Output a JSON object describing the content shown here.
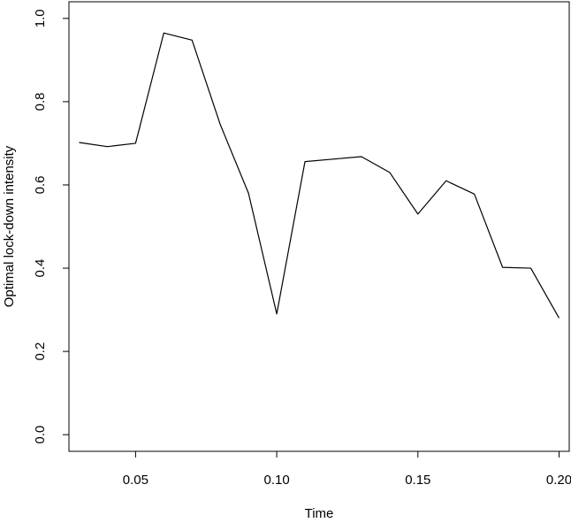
{
  "chart_data": {
    "type": "line",
    "title": "",
    "xlabel": "Time",
    "ylabel": "Optimal lock-down intensity",
    "xlim": [
      0.0264,
      0.2036
    ],
    "ylim": [
      -0.04,
      1.04
    ],
    "grid": false,
    "legend": "none",
    "x_ticks": [
      {
        "value": 0.05,
        "label": "0.05"
      },
      {
        "value": 0.1,
        "label": "0.10"
      },
      {
        "value": 0.15,
        "label": "0.15"
      },
      {
        "value": 0.2,
        "label": "0.20"
      }
    ],
    "y_ticks": [
      {
        "value": 0.0,
        "label": "0.0"
      },
      {
        "value": 0.2,
        "label": "0.2"
      },
      {
        "value": 0.4,
        "label": "0.4"
      },
      {
        "value": 0.6,
        "label": "0.6"
      },
      {
        "value": 0.8,
        "label": "0.8"
      },
      {
        "value": 1.0,
        "label": "1.0"
      }
    ],
    "series": [
      {
        "color": "#000000",
        "x": [
          0.03,
          0.04,
          0.05,
          0.06,
          0.07,
          0.08,
          0.09,
          0.1,
          0.11,
          0.12,
          0.13,
          0.14,
          0.15,
          0.16,
          0.17,
          0.18,
          0.19,
          0.2
        ],
        "y": [
          0.702,
          0.692,
          0.7,
          0.965,
          0.948,
          0.745,
          0.58,
          0.29,
          0.656,
          0.662,
          0.668,
          0.63,
          0.53,
          0.61,
          0.578,
          0.402,
          0.4,
          0.28
        ]
      }
    ]
  }
}
